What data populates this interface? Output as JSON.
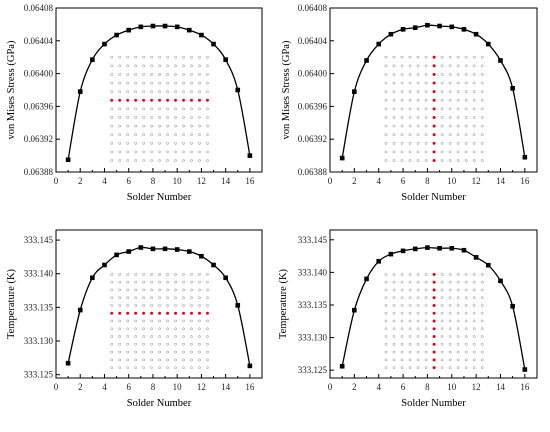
{
  "chart_data": [
    {
      "type": "scatter",
      "xlabel": "Solder Number",
      "ylabel": "von Mises Stress (GPa)",
      "xlim": [
        0,
        17
      ],
      "ylim": [
        0.06388,
        0.06408
      ],
      "xticks": [
        0,
        2,
        4,
        6,
        8,
        10,
        12,
        14,
        16
      ],
      "yticks": [
        "0.06388",
        "0.06392",
        "0.06396",
        "0.06400",
        "0.06404",
        "0.06408"
      ],
      "inset": {
        "rows": 13,
        "cols": 13,
        "highlight": "row",
        "highlight_index": 5
      },
      "series": [
        {
          "x": [
            1,
            2,
            3,
            4,
            5,
            6,
            7,
            8,
            9,
            10,
            11,
            12,
            13,
            14,
            15,
            16
          ],
          "values": [
            0.063895,
            0.063978,
            0.064017,
            0.064036,
            0.064047,
            0.064053,
            0.064057,
            0.064058,
            0.064058,
            0.064057,
            0.064053,
            0.064047,
            0.064036,
            0.064017,
            0.06398,
            0.0639
          ]
        }
      ]
    },
    {
      "type": "scatter",
      "xlabel": "Solder Number",
      "ylabel": "von Mises Stress (GPa)",
      "xlim": [
        0,
        17
      ],
      "ylim": [
        0.06388,
        0.06408
      ],
      "xticks": [
        0,
        2,
        4,
        6,
        8,
        10,
        12,
        14,
        16
      ],
      "yticks": [
        "0.06388",
        "0.06392",
        "0.06396",
        "0.06400",
        "0.06404",
        "0.06408"
      ],
      "inset": {
        "rows": 13,
        "cols": 13,
        "highlight": "column",
        "highlight_index": 6
      },
      "series": [
        {
          "x": [
            1,
            2,
            3,
            4,
            5,
            6,
            7,
            8,
            9,
            10,
            11,
            12,
            13,
            14,
            15,
            16
          ],
          "values": [
            0.063897,
            0.063978,
            0.064016,
            0.064036,
            0.064048,
            0.064054,
            0.064056,
            0.064059,
            0.064058,
            0.064057,
            0.064054,
            0.064048,
            0.064036,
            0.064016,
            0.063982,
            0.063898
          ]
        }
      ]
    },
    {
      "type": "scatter",
      "xlabel": "Solder Number",
      "ylabel": "Temperature (K)",
      "xlim": [
        0,
        17
      ],
      "ylim": [
        333.1245,
        333.1465
      ],
      "xticks": [
        0,
        2,
        4,
        6,
        8,
        10,
        12,
        14,
        16
      ],
      "yticks": [
        "333.125",
        "333.130",
        "333.135",
        "333.140",
        "333.145"
      ],
      "inset": {
        "rows": 13,
        "cols": 13,
        "highlight": "row",
        "highlight_index": 5
      },
      "series": [
        {
          "x": [
            1,
            2,
            3,
            4,
            5,
            6,
            7,
            8,
            9,
            10,
            11,
            12,
            13,
            14,
            15,
            16
          ],
          "values": [
            333.1267,
            333.1346,
            333.1394,
            333.1413,
            333.1428,
            333.1433,
            333.1439,
            333.1437,
            333.1437,
            333.1436,
            333.1433,
            333.1426,
            333.1413,
            333.1394,
            333.1353,
            333.1263
          ]
        }
      ]
    },
    {
      "type": "scatter",
      "xlabel": "Solder Number",
      "ylabel": "Temperature (K)",
      "xlim": [
        0,
        17
      ],
      "ylim": [
        333.1238,
        333.1465
      ],
      "xticks": [
        0,
        2,
        4,
        6,
        8,
        10,
        12,
        14,
        16
      ],
      "yticks": [
        "333.125",
        "333.130",
        "333.135",
        "333.140",
        "333.145"
      ],
      "inset": {
        "rows": 13,
        "cols": 13,
        "highlight": "column",
        "highlight_index": 6
      },
      "series": [
        {
          "x": [
            1,
            2,
            3,
            4,
            5,
            6,
            7,
            8,
            9,
            10,
            11,
            12,
            13,
            14,
            15,
            16
          ],
          "values": [
            333.1256,
            333.1342,
            333.139,
            333.1417,
            333.1428,
            333.1433,
            333.1436,
            333.1438,
            333.1437,
            333.1437,
            333.1434,
            333.1423,
            333.1411,
            333.1387,
            333.1348,
            333.1251
          ]
        }
      ]
    }
  ]
}
